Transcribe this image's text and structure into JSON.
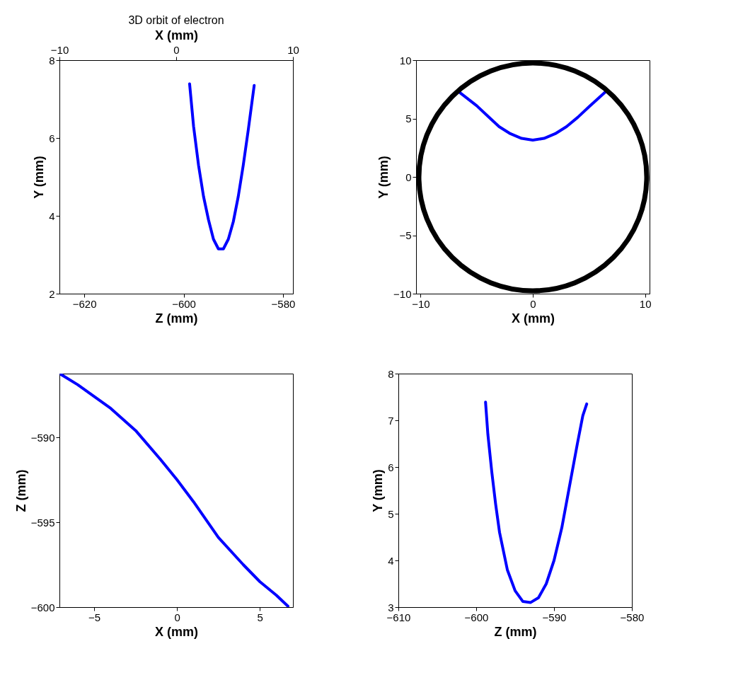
{
  "chart_data": [
    {
      "type": "line",
      "title": "3D orbit of electron",
      "xlabel": "Z (mm)",
      "ylabel": "Y (mm)",
      "x2label": "X (mm)",
      "xlim": [
        -625,
        -578
      ],
      "xticks": [
        -620,
        -600,
        -580
      ],
      "ylim": [
        2,
        8
      ],
      "yticks": [
        2,
        4,
        6,
        8
      ],
      "x2lim": [
        -10,
        10
      ],
      "x2ticks": [
        -10,
        0,
        10
      ],
      "grid": false,
      "series": [
        {
          "color": "#0000ff",
          "x": [
            -598.8,
            -598,
            -597,
            -596,
            -595,
            -594,
            -593,
            -592,
            -591,
            -590,
            -589,
            -588,
            -587,
            -585.8
          ],
          "values": [
            7.39,
            6.3,
            5.3,
            4.5,
            3.9,
            3.4,
            3.15,
            3.15,
            3.4,
            3.85,
            4.5,
            5.3,
            6.2,
            7.35
          ]
        }
      ]
    },
    {
      "type": "line",
      "xlabel": "X (mm)",
      "ylabel": "Y (mm)",
      "xlim": [
        -10.4,
        10.4
      ],
      "xticks": [
        -10,
        0,
        10
      ],
      "ylim": [
        -10,
        10
      ],
      "yticks": [
        -10,
        -5,
        0,
        5,
        10
      ],
      "grid": false,
      "series": [
        {
          "color": "#0000ff",
          "x": [
            -6.6,
            -5,
            -4,
            -3,
            -2,
            -1,
            0,
            1,
            2,
            3,
            4,
            5,
            6.6
          ],
          "values": [
            7.3,
            6.1,
            5.2,
            4.3,
            3.7,
            3.3,
            3.15,
            3.3,
            3.7,
            4.3,
            5.1,
            6,
            7.4
          ]
        }
      ]
    },
    {
      "type": "line",
      "xlabel": "X (mm)",
      "ylabel": "Z (mm)",
      "xlim": [
        -7.1,
        7
      ],
      "xticks": [
        -5,
        0,
        5
      ],
      "ylim": [
        -600,
        -586.25
      ],
      "yticks": [
        -600,
        -595,
        -590
      ],
      "grid": false,
      "series": [
        {
          "color": "#0000ff",
          "x": [
            -7,
            -6,
            -5,
            -4,
            -2.5,
            -1,
            0,
            1,
            2.5,
            4,
            5,
            6,
            6.7
          ],
          "values": [
            -586.3,
            -586.9,
            -587.6,
            -588.3,
            -589.6,
            -591.3,
            -592.5,
            -593.8,
            -595.9,
            -597.5,
            -598.5,
            -599.3,
            -599.95
          ]
        }
      ]
    },
    {
      "type": "line",
      "xlabel": "Z (mm)",
      "ylabel": "Y (mm)",
      "xlim": [
        -610,
        -580
      ],
      "xticks": [
        -610,
        -600,
        -590,
        -580
      ],
      "ylim": [
        3,
        8
      ],
      "yticks": [
        3,
        4,
        5,
        6,
        7,
        8
      ],
      "grid": false,
      "series": [
        {
          "color": "#0000ff",
          "x": [
            -598.8,
            -598.5,
            -598,
            -597.5,
            -597,
            -596,
            -595,
            -594,
            -593,
            -592,
            -591,
            -590,
            -589,
            -588,
            -587,
            -586.3,
            -585.8
          ],
          "values": [
            7.39,
            6.7,
            5.9,
            5.2,
            4.6,
            3.8,
            3.35,
            3.12,
            3.1,
            3.2,
            3.5,
            4.0,
            4.7,
            5.6,
            6.5,
            7.1,
            7.35
          ]
        }
      ]
    }
  ]
}
